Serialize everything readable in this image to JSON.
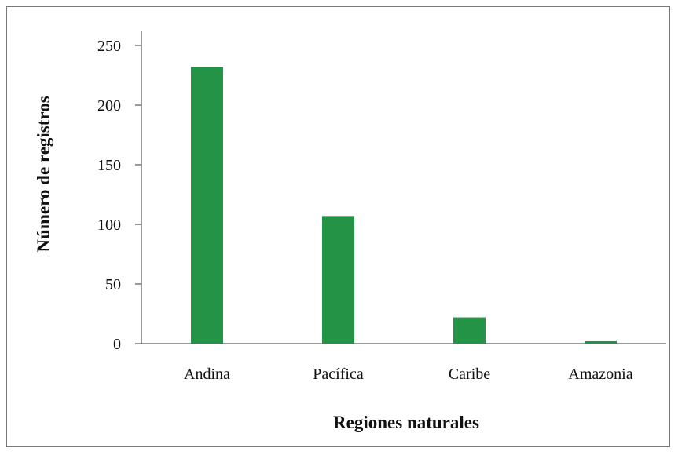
{
  "chart_data": {
    "type": "bar",
    "categories": [
      "Andina",
      "Pacífica",
      "Caribe",
      "Amazonia"
    ],
    "values": [
      232,
      107,
      22,
      2
    ],
    "xlabel": "Regiones naturales",
    "ylabel": "Número de registros",
    "ylim": [
      0,
      250
    ],
    "yticks": [
      0,
      50,
      100,
      150,
      200,
      250
    ],
    "yticks_text": [
      "0",
      "50",
      "100",
      "150",
      "200",
      "250"
    ],
    "bar_color": "#239446",
    "axis_color": "#333333",
    "grid": false,
    "legend": "none"
  }
}
